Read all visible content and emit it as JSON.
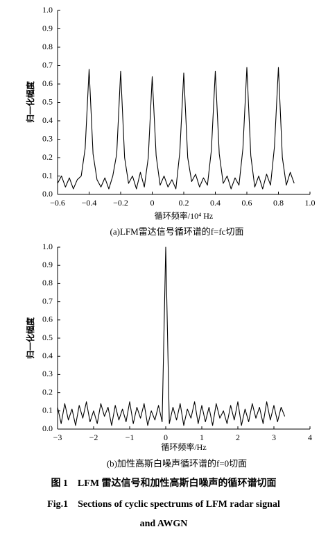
{
  "chart_data": [
    {
      "type": "line",
      "x_label": "循环频率/10⁴ Hz",
      "y_label": "归一化幅度",
      "caption": "(a)LFM雷达信号循环谱的f=fc切面",
      "x": [
        -0.6,
        -0.575,
        -0.55,
        -0.525,
        -0.5,
        -0.475,
        -0.45,
        -0.425,
        -0.4,
        -0.375,
        -0.35,
        -0.325,
        -0.3,
        -0.275,
        -0.25,
        -0.225,
        -0.2,
        -0.175,
        -0.15,
        -0.125,
        -0.1,
        -0.075,
        -0.05,
        -0.025,
        0,
        0.025,
        0.05,
        0.075,
        0.1,
        0.125,
        0.15,
        0.175,
        0.2,
        0.225,
        0.25,
        0.275,
        0.3,
        0.325,
        0.35,
        0.375,
        0.4,
        0.425,
        0.45,
        0.475,
        0.5,
        0.525,
        0.55,
        0.575,
        0.6,
        0.625,
        0.65,
        0.675,
        0.7,
        0.725,
        0.75,
        0.775,
        0.8,
        0.825,
        0.85,
        0.875,
        0.9
      ],
      "values": [
        0.06,
        0.1,
        0.04,
        0.09,
        0.03,
        0.08,
        0.1,
        0.25,
        0.68,
        0.22,
        0.08,
        0.04,
        0.09,
        0.03,
        0.1,
        0.22,
        0.67,
        0.2,
        0.06,
        0.1,
        0.03,
        0.12,
        0.04,
        0.2,
        0.64,
        0.21,
        0.05,
        0.1,
        0.04,
        0.08,
        0.03,
        0.23,
        0.66,
        0.2,
        0.07,
        0.11,
        0.04,
        0.09,
        0.05,
        0.24,
        0.67,
        0.22,
        0.06,
        0.1,
        0.03,
        0.09,
        0.05,
        0.25,
        0.69,
        0.21,
        0.04,
        0.1,
        0.03,
        0.11,
        0.05,
        0.26,
        0.69,
        0.2,
        0.05,
        0.12,
        0.06
      ],
      "color": "#000000",
      "xlim": [
        -0.6,
        1.0
      ],
      "xticks": [
        {
          "value": -0.6,
          "label": "−0.6"
        },
        {
          "value": -0.4,
          "label": "−0.4"
        },
        {
          "value": -0.2,
          "label": "−0.2"
        },
        0,
        0.2,
        0.4,
        0.6,
        0.8,
        {
          "value": 1.0,
          "label": "1.0"
        }
      ],
      "ylim": [
        0,
        1.0
      ],
      "yticks": [
        {
          "value": 0,
          "label": "0.0"
        },
        0.1,
        0.2,
        0.3,
        0.4,
        0.5,
        0.6,
        0.7,
        0.8,
        0.9,
        {
          "value": 1.0,
          "label": "1.0"
        }
      ]
    },
    {
      "type": "line",
      "x_label": "循环频率/Hz",
      "y_label": "归一化幅度",
      "caption": "(b)加性高斯白噪声循环谱的f=0切面",
      "x": [
        -3.0,
        -2.9,
        -2.8,
        -2.7,
        -2.6,
        -2.5,
        -2.4,
        -2.3,
        -2.2,
        -2.1,
        -2.0,
        -1.9,
        -1.8,
        -1.7,
        -1.6,
        -1.5,
        -1.4,
        -1.3,
        -1.2,
        -1.1,
        -1.0,
        -0.9,
        -0.8,
        -0.7,
        -0.6,
        -0.5,
        -0.4,
        -0.3,
        -0.2,
        -0.1,
        0,
        0.1,
        0.2,
        0.3,
        0.4,
        0.5,
        0.6,
        0.7,
        0.8,
        0.9,
        1.0,
        1.1,
        1.2,
        1.3,
        1.4,
        1.5,
        1.6,
        1.7,
        1.8,
        1.9,
        2.0,
        2.1,
        2.2,
        2.3,
        2.4,
        2.5,
        2.6,
        2.7,
        2.8,
        2.9,
        3.0,
        3.1,
        3.2,
        3.3
      ],
      "values": [
        0.12,
        0.03,
        0.14,
        0.05,
        0.11,
        0.02,
        0.13,
        0.06,
        0.15,
        0.04,
        0.1,
        0.03,
        0.14,
        0.07,
        0.12,
        0.02,
        0.13,
        0.05,
        0.11,
        0.04,
        0.15,
        0.03,
        0.12,
        0.06,
        0.14,
        0.02,
        0.1,
        0.05,
        0.13,
        0.04,
        1.0,
        0.03,
        0.12,
        0.05,
        0.14,
        0.02,
        0.11,
        0.06,
        0.15,
        0.03,
        0.13,
        0.04,
        0.12,
        0.02,
        0.14,
        0.06,
        0.1,
        0.03,
        0.13,
        0.05,
        0.15,
        0.02,
        0.11,
        0.04,
        0.14,
        0.06,
        0.12,
        0.03,
        0.15,
        0.05,
        0.13,
        0.04,
        0.12,
        0.07
      ],
      "color": "#000000",
      "xlim": [
        -3,
        4
      ],
      "xticks": [
        {
          "value": -3,
          "label": "−3"
        },
        {
          "value": -2,
          "label": "−2"
        },
        {
          "value": -1,
          "label": "−1"
        },
        0,
        1,
        2,
        3,
        4
      ],
      "ylim": [
        0,
        1.0
      ],
      "yticks": [
        {
          "value": 0,
          "label": "0.0"
        },
        0.1,
        0.2,
        0.3,
        0.4,
        0.5,
        0.6,
        0.7,
        0.8,
        0.9,
        {
          "value": 1.0,
          "label": "1.0"
        }
      ]
    }
  ],
  "figure_caption": {
    "zh": "图 1　LFM 雷达信号和加性高斯白噪声的循环谱切面",
    "en": [
      "Fig.1　Sections of cyclic spectrums of LFM radar signal",
      "and AWGN"
    ]
  }
}
